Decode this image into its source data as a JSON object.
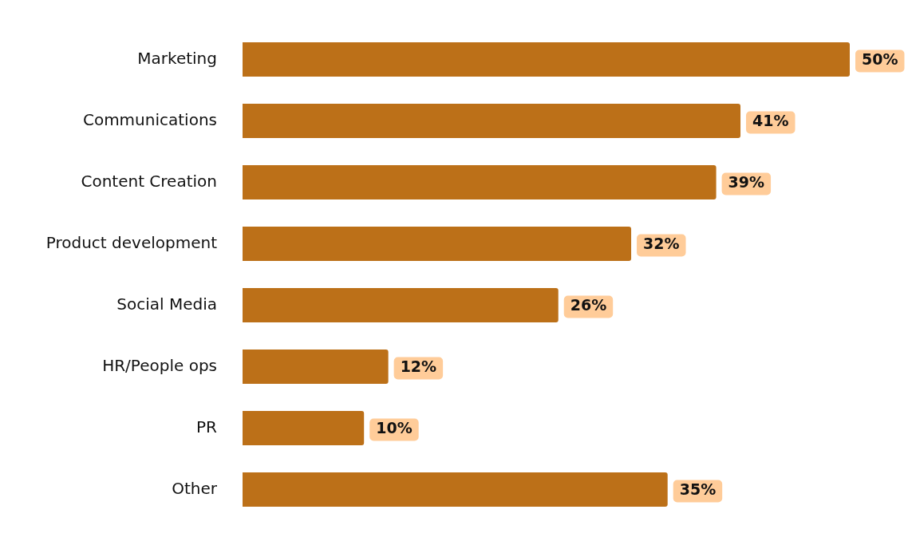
{
  "chart_data": {
    "type": "bar",
    "orientation": "horizontal",
    "categories": [
      "Marketing",
      "Communications",
      "Content Creation",
      "Product development",
      "Social Media",
      "HR/People ops",
      "PR",
      "Other"
    ],
    "values": [
      50,
      41,
      39,
      32,
      26,
      12,
      10,
      35
    ],
    "color": "#bc7018",
    "data_labels": true,
    "value_labels": [
      "50%",
      "41%",
      "39%",
      "32%",
      "26%",
      "12%",
      "10%",
      "35%"
    ],
    "grid": false,
    "legend": false
  }
}
